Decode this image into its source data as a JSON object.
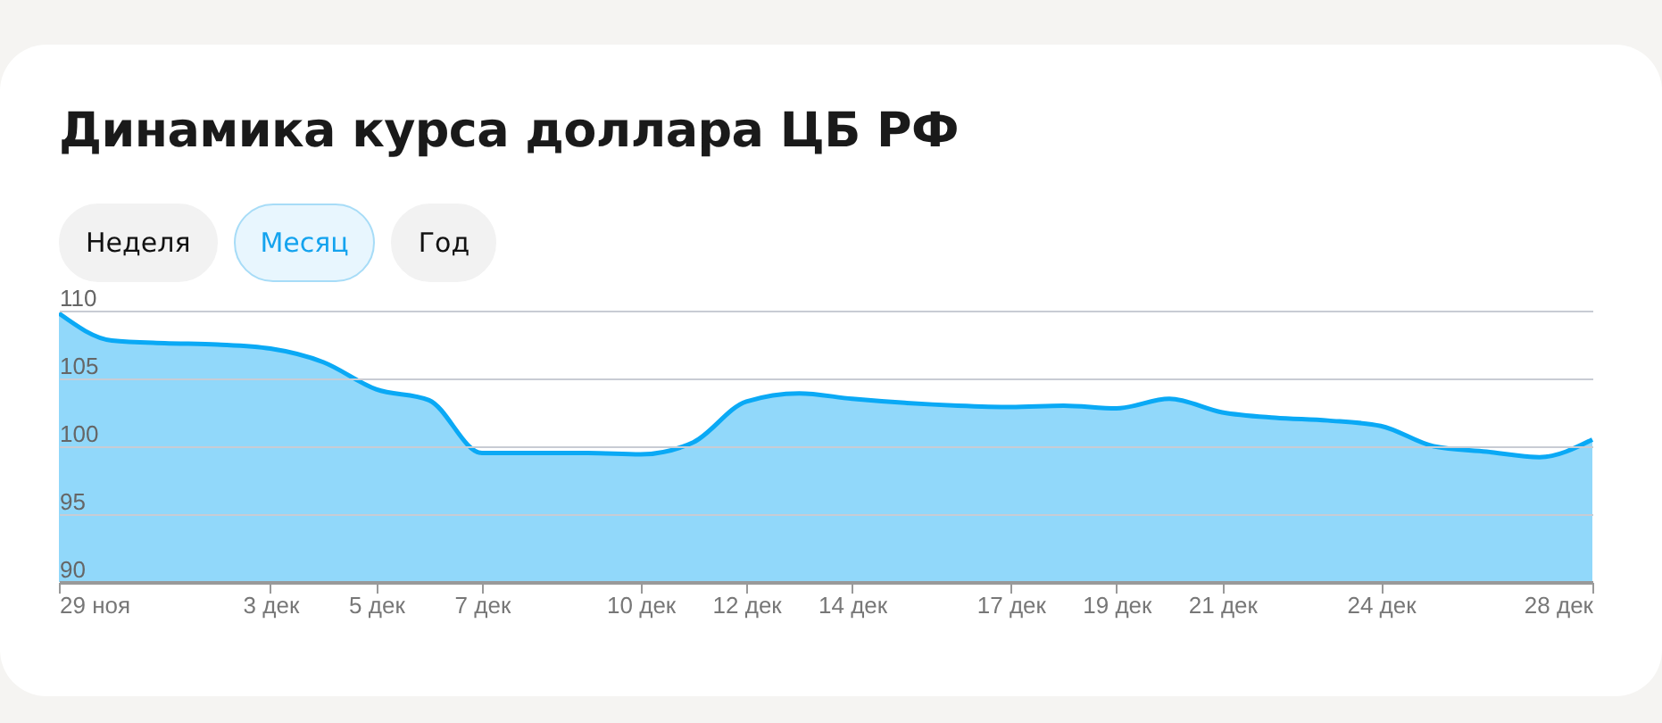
{
  "chart_data": {
    "type": "area",
    "title": "Динамика курса доллара ЦБ РФ",
    "annotations": [
      "Неделя",
      "Месяц",
      "Год"
    ],
    "x": [
      "--11-29",
      "--11-30",
      "--12-01",
      "--12-02",
      "--12-03",
      "--12-04",
      "--12-05",
      "--12-06",
      "--12-07",
      "--12-08",
      "--12-09",
      "--12-10",
      "--12-11",
      "--12-12",
      "--12-13",
      "--12-14",
      "--12-15",
      "--12-16",
      "--12-17",
      "--12-18",
      "--12-19",
      "--12-20",
      "--12-21",
      "--12-22",
      "--12-23",
      "--12-24",
      "--12-25",
      "--12-26",
      "--12-27",
      "--12-28"
    ],
    "series": [
      {
        "color": "#0aa9f5",
        "values": [
          109.8,
          107.8,
          107.6,
          107.5,
          107.2,
          106.2,
          104.2,
          103.4,
          99.5,
          99.5,
          99.5,
          99.4,
          100.3,
          103.3,
          103.9,
          103.5,
          103.2,
          103.0,
          102.9,
          103.0,
          102.8,
          103.5,
          102.5,
          102.1,
          101.9,
          101.5,
          100.0,
          99.6,
          99.2,
          100.5
        ]
      }
    ],
    "xlim": [
      "--11-29",
      "--12-28"
    ],
    "xticks": [
      {
        "value": "--11-29",
        "label": "29 ноя"
      },
      {
        "value": "--12-03",
        "label": "3 дек"
      },
      {
        "value": "--12-05",
        "label": "5 дек"
      },
      {
        "value": "--12-07",
        "label": "7 дек"
      },
      {
        "value": "--12-10",
        "label": "10 дек"
      },
      {
        "value": "--12-12",
        "label": "12 дек"
      },
      {
        "value": "--12-14",
        "label": "14 дек"
      },
      {
        "value": "--12-17",
        "label": "17 дек"
      },
      {
        "value": "--12-19",
        "label": "19 дек"
      },
      {
        "value": "--12-21",
        "label": "21 дек"
      },
      {
        "value": "--12-24",
        "label": "24 дек"
      },
      {
        "value": "--12-28",
        "label": "28 дек"
      }
    ],
    "ylim": [
      90,
      110
    ],
    "yticks": [
      90,
      95,
      100,
      105,
      110
    ],
    "grid": "y"
  }
}
